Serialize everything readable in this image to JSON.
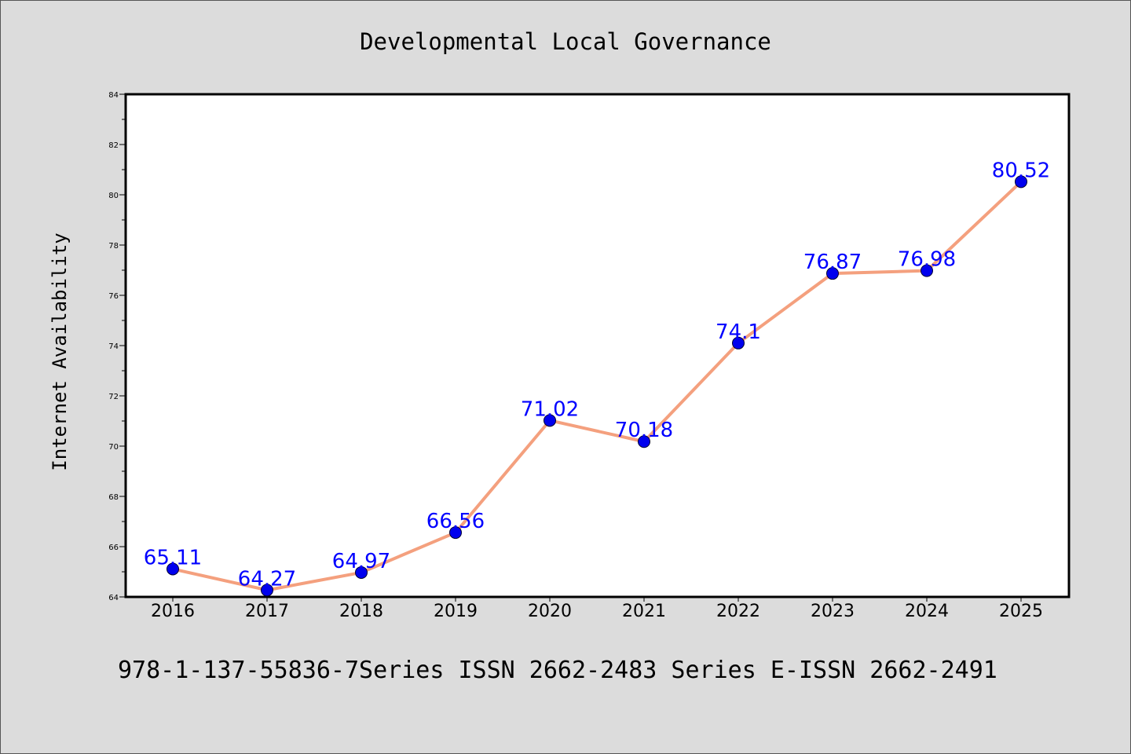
{
  "title": "Developmental Local Governance",
  "footer": "978-1-137-55836-7Series ISSN 2662-2483 Series E-ISSN 2662-2491",
  "colors": {
    "background": "#dcdcdc",
    "plot_background": "#ffffff",
    "line": "#f4a07e",
    "marker": "#0000ee",
    "label": "#0000ff"
  },
  "chart_data": {
    "type": "line",
    "title": "Developmental Local Governance",
    "xlabel": "",
    "ylabel": "Internet Availability",
    "categories": [
      "2016",
      "2017",
      "2018",
      "2019",
      "2020",
      "2021",
      "2022",
      "2023",
      "2024",
      "2025"
    ],
    "series": [
      {
        "values": [
          65.11,
          64.27,
          64.97,
          66.56,
          71.02,
          70.18,
          74.1,
          76.87,
          76.98,
          80.52
        ],
        "labels": [
          "65.11",
          "64.27",
          "64.97",
          "66.56",
          "71.02",
          "70.18",
          "74.1",
          "76.87",
          "76.98",
          "80.52"
        ]
      }
    ],
    "ylim": [
      64,
      84
    ],
    "yticks": [
      "64",
      "66",
      "68",
      "70",
      "72",
      "74",
      "76",
      "78",
      "80",
      "82",
      "84"
    ],
    "grid": false,
    "legend": "none"
  }
}
